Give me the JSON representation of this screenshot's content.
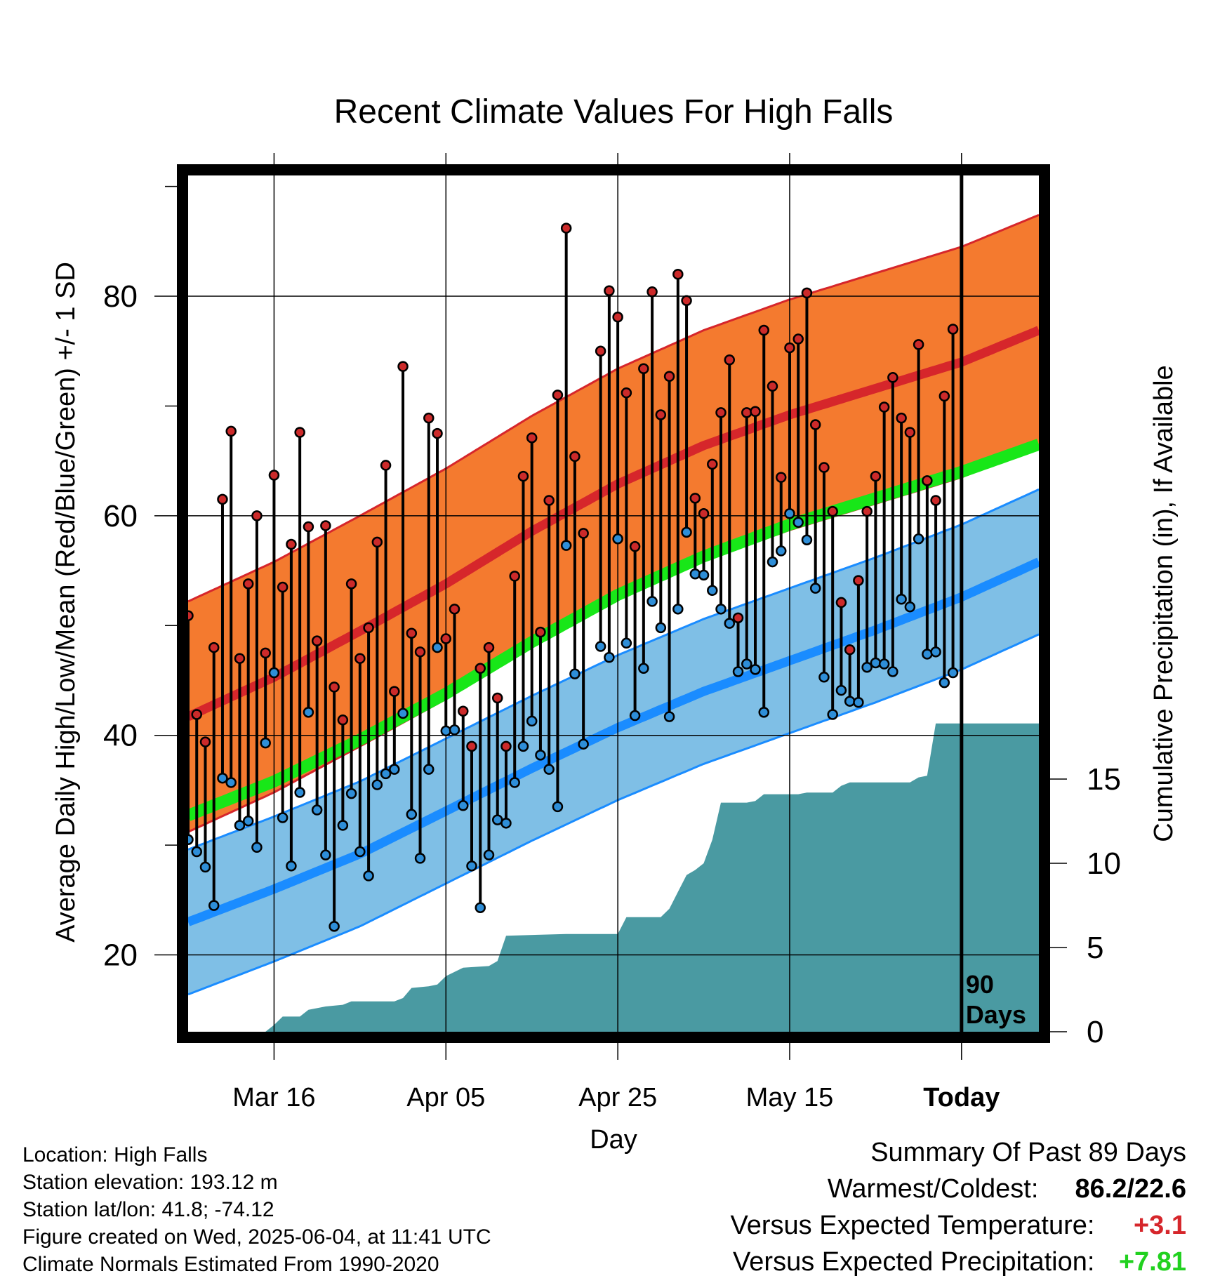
{
  "chart_data": {
    "type": "line",
    "title": "Recent Climate Values For High Falls",
    "xlabel": "Day",
    "ylabel": "Average Daily High/Low/Mean (Red/Blue/Green) +/- 1 SD",
    "y2label": "Cumulative Precipitation (in), If Available",
    "x_tick_labels": [
      "Mar 16",
      "Apr 05",
      "Apr 25",
      "May 15",
      "Today"
    ],
    "x_tick_days": [
      10,
      30,
      50,
      70,
      90
    ],
    "x_range_days": [
      0,
      99
    ],
    "ylim": [
      13,
      91
    ],
    "y_ticks": [
      20,
      40,
      60,
      80
    ],
    "y2lim": [
      0,
      19
    ],
    "y2_ticks": [
      0,
      5,
      10,
      15
    ],
    "today_day": 90,
    "today_label_line1": "90",
    "today_label_line2": "Days",
    "grid": true,
    "normal_high_mean": [
      [
        0,
        41.7
      ],
      [
        10,
        45.3
      ],
      [
        20,
        49.5
      ],
      [
        30,
        53.8
      ],
      [
        40,
        58.6
      ],
      [
        50,
        62.9
      ],
      [
        60,
        66.4
      ],
      [
        70,
        69.2
      ],
      [
        80,
        71.6
      ],
      [
        90,
        74.0
      ],
      [
        99,
        76.9
      ]
    ],
    "normal_high_sd": 10.5,
    "normal_mean_line": [
      [
        0,
        32.7
      ],
      [
        10,
        35.8
      ],
      [
        20,
        39.6
      ],
      [
        30,
        43.8
      ],
      [
        40,
        48.5
      ],
      [
        50,
        52.8
      ],
      [
        60,
        56.3
      ],
      [
        70,
        59.2
      ],
      [
        80,
        61.6
      ],
      [
        90,
        64.0
      ],
      [
        99,
        66.5
      ]
    ],
    "normal_low_mean": [
      [
        0,
        23.0
      ],
      [
        10,
        26.0
      ],
      [
        20,
        29.2
      ],
      [
        30,
        33.1
      ],
      [
        40,
        37.0
      ],
      [
        50,
        40.7
      ],
      [
        60,
        44.0
      ],
      [
        70,
        46.8
      ],
      [
        80,
        49.6
      ],
      [
        90,
        52.6
      ],
      [
        99,
        55.8
      ]
    ],
    "normal_low_sd": 6.6,
    "colors": {
      "high_band": "#f47a2f",
      "high_line": "#d6262b",
      "mean_line": "#18e718",
      "low_band": "#7fbfe6",
      "low_line": "#1a8cff",
      "precip": "#4a9aa2",
      "high_dot": "#cc2a2a",
      "low_dot": "#2e8ed8"
    },
    "series": [
      {
        "name": "High",
        "values": [
          50.9,
          41.9,
          39.4,
          48.0,
          61.5,
          67.7,
          47.0,
          53.8,
          60.0,
          47.5,
          63.7,
          53.5,
          57.4,
          67.6,
          59.0,
          48.6,
          59.1,
          44.4,
          41.4,
          53.8,
          47.0,
          49.8,
          57.6,
          64.6,
          44.0,
          73.6,
          49.3,
          47.6,
          68.9,
          67.5,
          48.8,
          51.5,
          42.2,
          39.0,
          46.1,
          48.0,
          43.4,
          39.0,
          54.5,
          63.6,
          67.1,
          49.4,
          61.4,
          71.0,
          86.2,
          65.4,
          58.4,
          null,
          75.0,
          80.5,
          78.1,
          71.2,
          57.2,
          73.4,
          80.4,
          69.2,
          72.7,
          82.0,
          79.6,
          61.6,
          60.2,
          64.7,
          69.4,
          74.2,
          50.7,
          69.4,
          69.5,
          76.9,
          71.8,
          63.5,
          75.3,
          76.1,
          80.3,
          68.3,
          64.4,
          60.4,
          52.1,
          47.8,
          54.1,
          60.4,
          63.6,
          69.9,
          72.6,
          68.9,
          67.6,
          75.6,
          63.2,
          61.4,
          70.9,
          77.0
        ]
      },
      {
        "name": "Low",
        "values": [
          30.5,
          29.4,
          28.0,
          24.5,
          36.1,
          35.7,
          31.8,
          32.2,
          29.8,
          39.3,
          45.7,
          32.5,
          28.1,
          34.8,
          42.1,
          33.2,
          29.1,
          22.6,
          31.8,
          34.7,
          29.4,
          27.2,
          35.5,
          36.5,
          36.9,
          42.0,
          32.8,
          28.8,
          36.9,
          48.0,
          40.4,
          40.5,
          33.6,
          28.1,
          24.3,
          29.1,
          32.3,
          32.0,
          35.7,
          39.0,
          41.3,
          38.2,
          36.9,
          33.5,
          57.3,
          45.6,
          39.2,
          null,
          48.1,
          47.1,
          57.9,
          48.4,
          41.8,
          46.1,
          52.2,
          49.8,
          41.7,
          51.5,
          58.5,
          54.7,
          54.6,
          53.2,
          51.5,
          50.2,
          45.8,
          46.5,
          46.0,
          42.1,
          55.8,
          56.8,
          60.2,
          59.4,
          57.8,
          53.4,
          45.3,
          41.9,
          44.1,
          43.1,
          43.0,
          46.2,
          46.6,
          46.5,
          45.8,
          52.4,
          51.7,
          57.9,
          47.4,
          47.6,
          44.8,
          45.7
        ]
      }
    ],
    "precip_cumulative": [
      [
        0,
        0
      ],
      [
        9,
        0
      ],
      [
        10,
        0.4
      ],
      [
        11,
        0.9
      ],
      [
        13,
        0.9
      ],
      [
        14,
        1.3
      ],
      [
        16,
        1.5
      ],
      [
        18,
        1.6
      ],
      [
        19,
        1.8
      ],
      [
        24,
        1.8
      ],
      [
        25,
        2.0
      ],
      [
        26,
        2.6
      ],
      [
        28,
        2.7
      ],
      [
        29,
        2.8
      ],
      [
        30,
        3.3
      ],
      [
        32,
        3.8
      ],
      [
        35,
        3.9
      ],
      [
        36,
        4.2
      ],
      [
        37,
        5.7
      ],
      [
        44,
        5.8
      ],
      [
        45,
        5.8
      ],
      [
        50,
        5.8
      ],
      [
        51,
        6.8
      ],
      [
        55,
        6.8
      ],
      [
        56,
        7.3
      ],
      [
        57,
        8.3
      ],
      [
        58,
        9.3
      ],
      [
        59,
        9.6
      ],
      [
        60,
        10.0
      ],
      [
        61,
        11.4
      ],
      [
        62,
        13.6
      ],
      [
        65,
        13.6
      ],
      [
        66,
        13.7
      ],
      [
        67,
        14.1
      ],
      [
        71,
        14.1
      ],
      [
        72,
        14.2
      ],
      [
        75,
        14.2
      ],
      [
        76,
        14.6
      ],
      [
        77,
        14.8
      ],
      [
        84,
        14.8
      ],
      [
        85,
        15.1
      ],
      [
        86,
        15.2
      ],
      [
        87,
        18.3
      ],
      [
        99,
        18.3
      ]
    ]
  },
  "footer": {
    "location": "Location: High Falls",
    "elevation": "Station elevation: 193.12 m",
    "latlon": "Station lat/lon: 41.8; -74.12",
    "created": "Figure created on Wed, 2025-06-04, at 11:41 UTC",
    "normals": "Climate Normals Estimated From 1990-2020"
  },
  "summary": {
    "title": "Summary Of Past 89 Days",
    "warmest_label": "Warmest/Coldest:",
    "warmest_value": "86.2/22.6",
    "temp_label": "Versus Expected Temperature:",
    "temp_value": "+3.1",
    "precip_label": "Versus Expected Precipitation:",
    "precip_value": "+7.81"
  }
}
